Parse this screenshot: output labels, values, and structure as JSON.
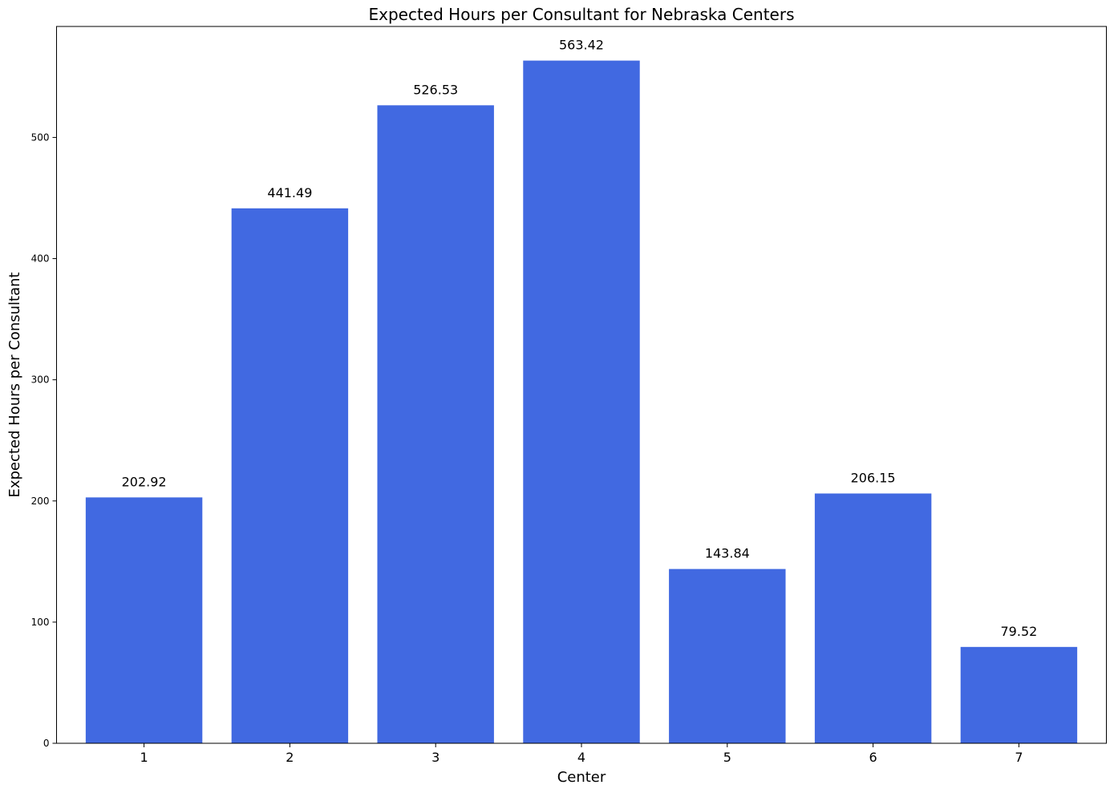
{
  "chart_data": {
    "type": "bar",
    "title": "Expected Hours per Consultant for Nebraska Centers",
    "xlabel": "Center",
    "ylabel": "Expected Hours per Consultant",
    "categories": [
      "1",
      "2",
      "3",
      "4",
      "5",
      "6",
      "7"
    ],
    "values": [
      202.92,
      441.49,
      526.53,
      563.42,
      143.84,
      206.15,
      79.52
    ],
    "data_labels": [
      "202.92",
      "441.49",
      "526.53",
      "563.42",
      "143.84",
      "206.15",
      "79.52"
    ],
    "yticks": [
      0,
      100,
      200,
      300,
      400,
      500
    ],
    "ytick_labels": [
      "0",
      "100",
      "200",
      "300",
      "400",
      "500"
    ],
    "ylim": [
      0,
      591.591
    ],
    "grid": false,
    "bar_color": "#4169e1"
  }
}
